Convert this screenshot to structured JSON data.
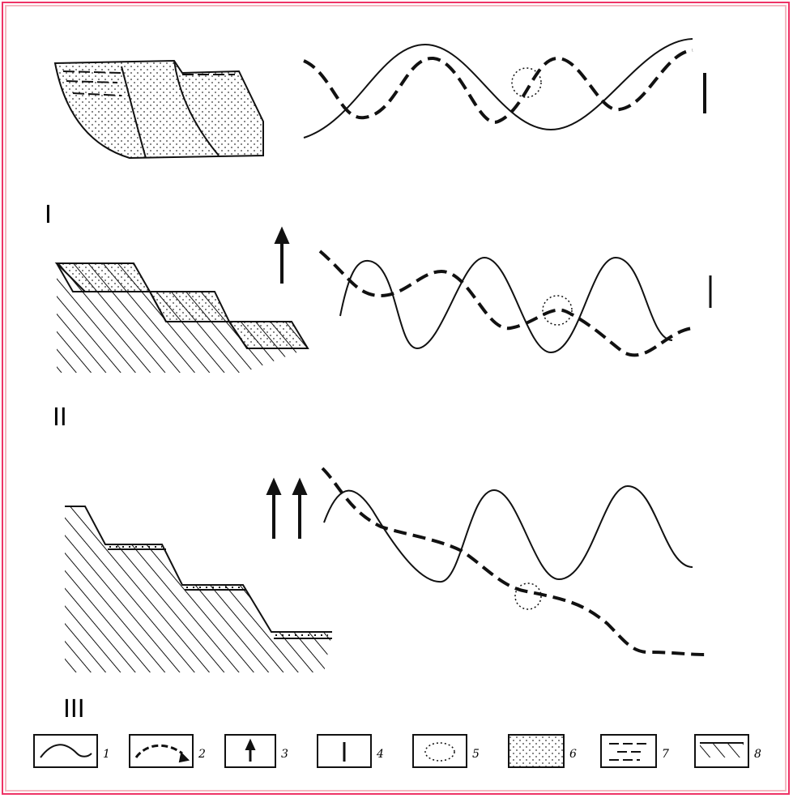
{
  "sections": [
    {
      "label": "I"
    },
    {
      "label": "II"
    },
    {
      "label": "III"
    }
  ],
  "legend": [
    {
      "label": "1"
    },
    {
      "label": "2"
    },
    {
      "label": "3"
    },
    {
      "label": "4"
    },
    {
      "label": "5"
    },
    {
      "label": "6"
    },
    {
      "label": "7"
    },
    {
      "label": "8"
    }
  ]
}
